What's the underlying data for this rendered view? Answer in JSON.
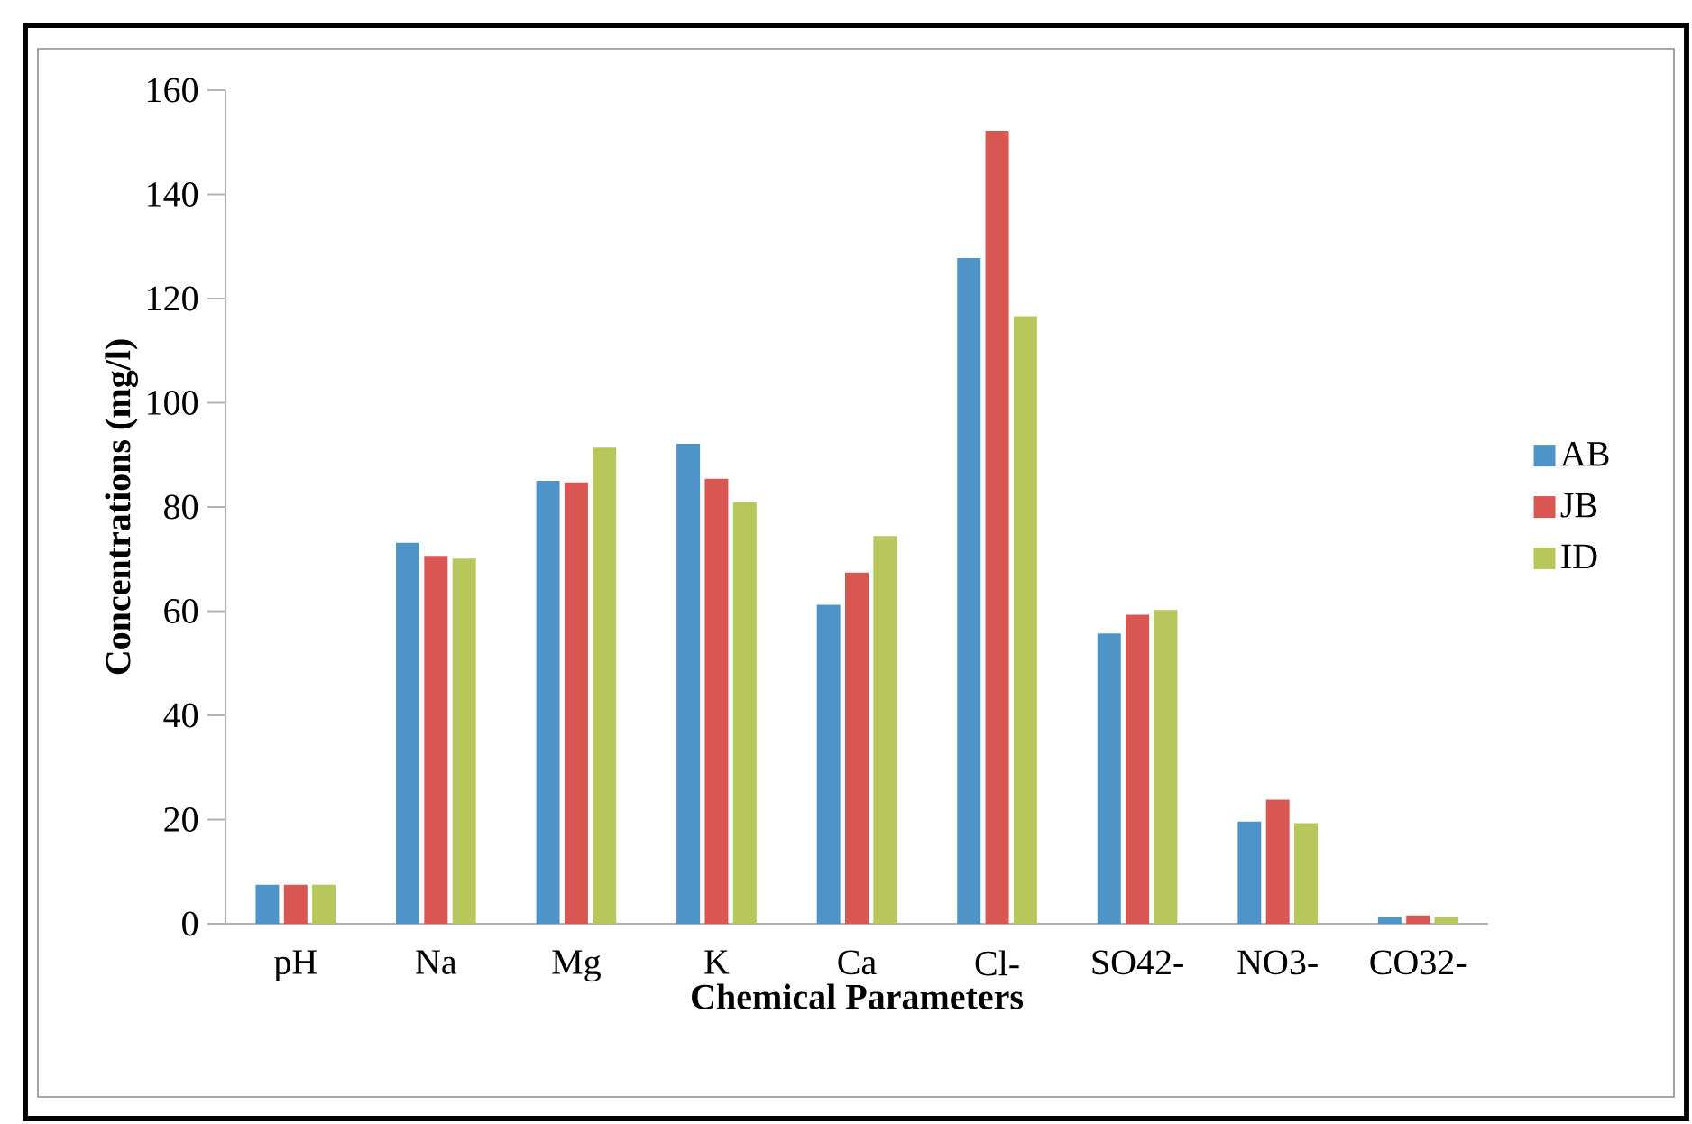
{
  "chart_data": {
    "type": "bar",
    "xlabel": "Chemical Parameters",
    "ylabel": "Concentrations (mg/l)",
    "categories": [
      "pH",
      "Na",
      "Mg",
      "K",
      "Ca",
      "Cl-",
      "SO42-",
      "NO3-",
      "CO32-"
    ],
    "series": [
      {
        "name": "AB",
        "color": "#4f94c9",
        "values": [
          7.5,
          73.1,
          85.0,
          92.1,
          61.2,
          127.8,
          55.7,
          19.6,
          1.3
        ]
      },
      {
        "name": "JB",
        "color": "#d85752",
        "values": [
          7.5,
          70.6,
          84.7,
          85.4,
          67.4,
          152.2,
          59.3,
          23.8,
          1.6
        ]
      },
      {
        "name": "ID",
        "color": "#b8c75b",
        "values": [
          7.5,
          70.1,
          91.4,
          80.9,
          74.4,
          116.6,
          60.2,
          19.3,
          1.3
        ]
      }
    ],
    "ylim": [
      0,
      160
    ],
    "yticks": [
      0,
      20,
      40,
      60,
      80,
      100,
      120,
      140,
      160
    ],
    "grid": false,
    "legend": "right"
  }
}
